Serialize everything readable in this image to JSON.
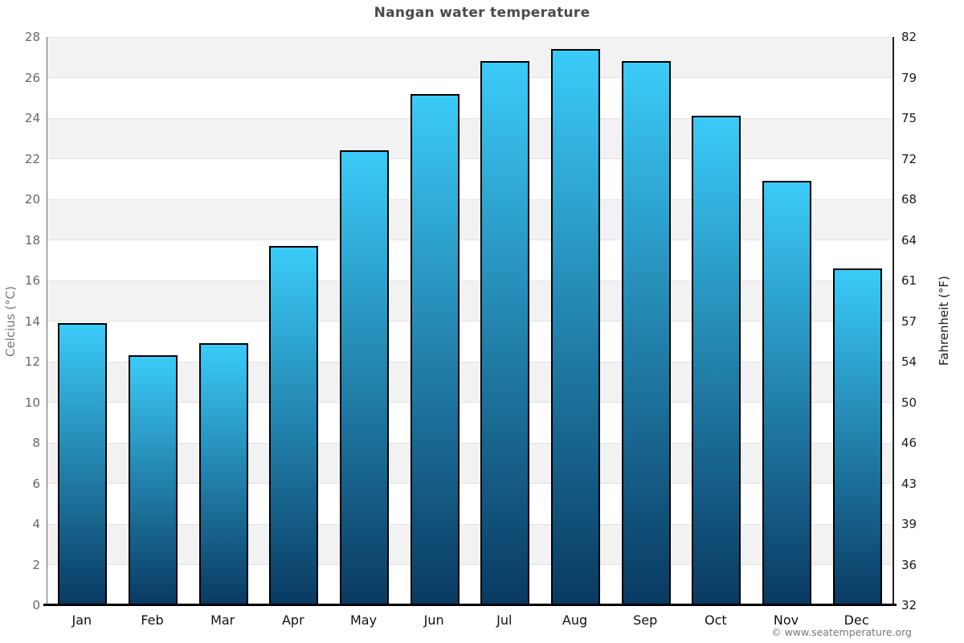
{
  "header": {
    "title": "Nangan water temperature"
  },
  "footer": {
    "copyright": "© www.seatemperature.org"
  },
  "chart_data": {
    "type": "bar",
    "title": "Nangan water temperature",
    "categories": [
      "Jan",
      "Feb",
      "Mar",
      "Apr",
      "May",
      "Jun",
      "Jul",
      "Aug",
      "Sep",
      "Oct",
      "Nov",
      "Dec"
    ],
    "values": [
      13.9,
      12.3,
      12.9,
      17.7,
      22.4,
      25.2,
      26.8,
      27.4,
      26.8,
      24.1,
      20.9,
      16.6
    ],
    "unit": "°C",
    "xlabel": "",
    "ylabel_left": "Celcius (°C)",
    "ylabel_right": "Fahrenheit (°F)",
    "ylim": [
      0,
      28
    ],
    "y_left_ticks": [
      0,
      2,
      4,
      6,
      8,
      10,
      12,
      14,
      16,
      18,
      20,
      22,
      24,
      26,
      28
    ],
    "y_right_ticks": [
      32,
      36,
      39,
      43,
      46,
      50,
      54,
      57,
      61,
      64,
      68,
      72,
      75,
      79,
      82
    ],
    "grid": "alternating-horizontal-bands",
    "legend": "none",
    "colors": {
      "bar_gradient_top": "#3bcbf8",
      "bar_gradient_bottom": "#093a62",
      "bar_border": "#000000",
      "band_gray": "#f2f2f2",
      "band_white": "#ffffff",
      "gridline": "#e2e2e2",
      "axis_line": "#000000",
      "title_text": "#4a4a4a",
      "left_tick_text": "#666666",
      "right_tick_text": "#1a1a1a"
    }
  }
}
